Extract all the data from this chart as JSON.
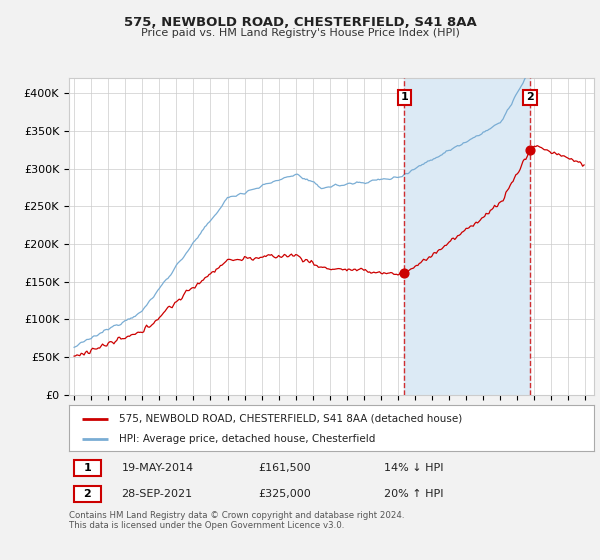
{
  "title": "575, NEWBOLD ROAD, CHESTERFIELD, S41 8AA",
  "subtitle": "Price paid vs. HM Land Registry's House Price Index (HPI)",
  "hpi_label": "HPI: Average price, detached house, Chesterfield",
  "property_label": "575, NEWBOLD ROAD, CHESTERFIELD, S41 8AA (detached house)",
  "annotation1_date": "19-MAY-2014",
  "annotation1_price": 161500,
  "annotation1_text": "14% ↓ HPI",
  "annotation2_date": "28-SEP-2021",
  "annotation2_price": 325000,
  "annotation2_text": "20% ↑ HPI",
  "footer": "Contains HM Land Registry data © Crown copyright and database right 2024.\nThis data is licensed under the Open Government Licence v3.0.",
  "hpi_color": "#7aadd4",
  "property_color": "#cc0000",
  "background_color": "#f2f2f2",
  "plot_background": "#ffffff",
  "shade_color": "#dceaf5",
  "ylim": [
    0,
    420000
  ],
  "yticks": [
    0,
    50000,
    100000,
    150000,
    200000,
    250000,
    300000,
    350000,
    400000
  ],
  "ytick_labels": [
    "£0",
    "£50K",
    "£100K",
    "£150K",
    "£200K",
    "£250K",
    "£300K",
    "£350K",
    "£400K"
  ],
  "xmin": 1995,
  "xmax": 2025.5,
  "sale1_x": 2014.38,
  "sale1_y": 161500,
  "sale2_x": 2021.75,
  "sale2_y": 325000
}
